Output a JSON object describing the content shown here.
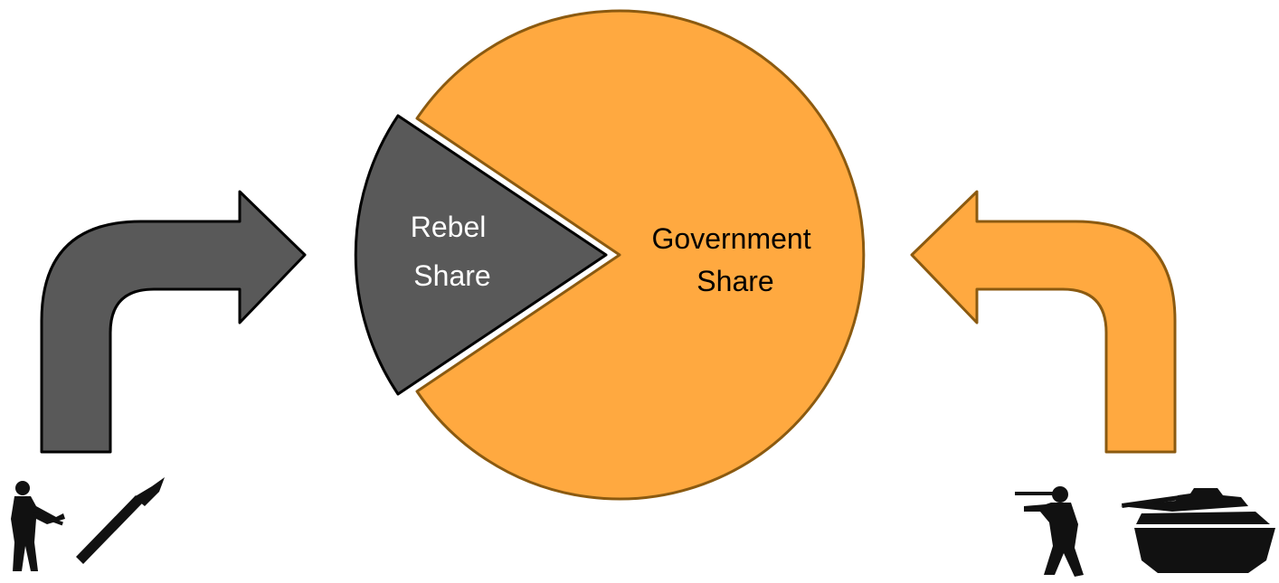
{
  "diagram": {
    "rebel_slice": {
      "label_line1": "Rebel",
      "label_line2": "Share",
      "share_percent": 20,
      "fill": "#595959",
      "stroke": "#000000",
      "text_color": "#ffffff"
    },
    "government_slice": {
      "label_line1": "Government",
      "label_line2": "Share",
      "share_percent": 80,
      "fill": "#FFA940",
      "stroke": "#8B5A10",
      "text_color": "#000000"
    },
    "left_arrow": {
      "fill": "#595959",
      "stroke": "#000000",
      "direction": "right"
    },
    "right_arrow": {
      "fill": "#FFA940",
      "stroke": "#8B5A10",
      "direction": "left"
    },
    "icons_left": [
      "rebel-soldier-icon",
      "rpg-launcher-icon"
    ],
    "icons_right": [
      "government-soldier-icon",
      "tank-icon"
    ]
  }
}
